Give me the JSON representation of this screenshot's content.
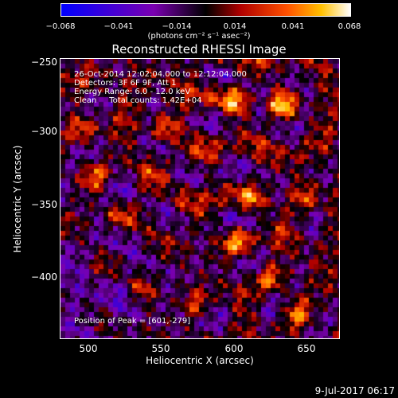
{
  "colorbar": {
    "ticks": [
      "−0.068",
      "−0.041",
      "−0.014",
      "0.014",
      "0.041",
      "0.068"
    ],
    "unit": "(photons cm⁻² s⁻¹ asec⁻²)",
    "range": [
      -0.068,
      0.068
    ]
  },
  "chart_data": {
    "type": "heatmap",
    "title": "Reconstructed RHESSI Image",
    "xlabel": "Heliocentric X (arcsec)",
    "ylabel": "Heliocentric Y (arcsec)",
    "xlim": [
      480,
      672
    ],
    "ylim": [
      -442,
      -250
    ],
    "x_ticks": [
      "500",
      "550",
      "600",
      "650"
    ],
    "y_ticks": [
      "−250",
      "−300",
      "−350",
      "−400"
    ],
    "annotations": [
      "26-Oct-2014 12:02:04.000 to 12:12:04.000",
      "Detectors: 3F 6F 9F, Att 1",
      "Energy Range: 6.0 - 12.0 keV",
      "Clean     Total counts: 1.42E+04"
    ],
    "peak_label": "Position of Peak = [601,-279]",
    "peak": [
      601,
      -279
    ],
    "sources": [
      {
        "x": 551,
        "y": -298,
        "v": 0.066
      },
      {
        "x": 633,
        "y": -282,
        "v": 0.068
      },
      {
        "x": 601,
        "y": -279,
        "v": 0.068
      },
      {
        "x": 604,
        "y": -374,
        "v": 0.064
      },
      {
        "x": 611,
        "y": -348,
        "v": 0.05
      },
      {
        "x": 624,
        "y": -400,
        "v": 0.055
      },
      {
        "x": 496,
        "y": -299,
        "v": 0.042
      },
      {
        "x": 564,
        "y": -346,
        "v": 0.052
      },
      {
        "x": 520,
        "y": -357,
        "v": 0.045
      },
      {
        "x": 535,
        "y": -408,
        "v": 0.044
      },
      {
        "x": 575,
        "y": -420,
        "v": 0.046
      },
      {
        "x": 648,
        "y": -345,
        "v": 0.04
      },
      {
        "x": 644,
        "y": -426,
        "v": 0.04
      },
      {
        "x": 585,
        "y": -275,
        "v": 0.038
      },
      {
        "x": 505,
        "y": -330,
        "v": 0.035
      }
    ]
  },
  "footer": "9-Jul-2017 06:17"
}
